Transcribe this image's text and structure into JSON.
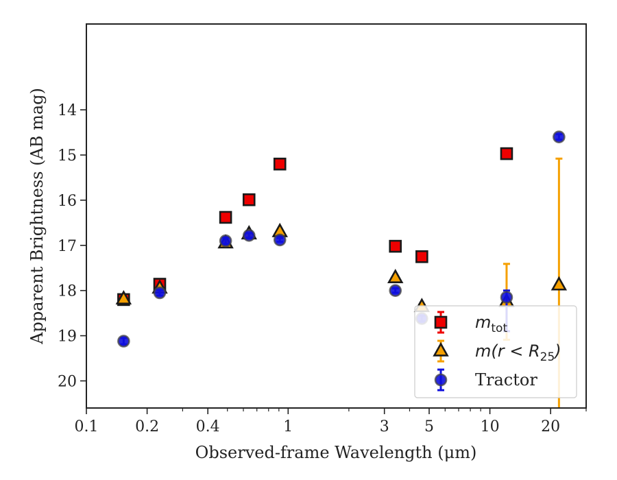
{
  "chart_data": {
    "type": "scatter",
    "xlabel": "Observed-frame Wavelength (μm)",
    "ylabel": "Apparent Brightness (AB mag)",
    "xscale": "log",
    "xlim": [
      0.1,
      30
    ],
    "ylim": [
      20.6,
      12.1
    ],
    "y_inverted": true,
    "x_ticks": [
      {
        "value": 0.1,
        "label": "0.1"
      },
      {
        "value": 0.2,
        "label": "0.2"
      },
      {
        "value": 0.4,
        "label": "0.4"
      },
      {
        "value": 1,
        "label": "1"
      },
      {
        "value": 3,
        "label": "3"
      },
      {
        "value": 5,
        "label": "5"
      },
      {
        "value": 10,
        "label": "10"
      },
      {
        "value": 20,
        "label": "20"
      }
    ],
    "y_ticks": [
      14,
      15,
      16,
      17,
      18,
      19,
      20
    ],
    "grid": false,
    "legend_position": "bottom-right",
    "series": [
      {
        "name": "m_tot",
        "legend_main": "m",
        "legend_sub": "tot",
        "marker": "square",
        "color": "#ee0000",
        "edge": "#1a1a1a",
        "points": [
          {
            "x": 0.153,
            "y": 18.2,
            "yerr": 0.04
          },
          {
            "x": 0.231,
            "y": 17.86,
            "yerr": 0.03
          },
          {
            "x": 0.49,
            "y": 16.38,
            "yerr": 0.02
          },
          {
            "x": 0.64,
            "y": 15.99,
            "yerr": 0.02
          },
          {
            "x": 0.91,
            "y": 15.2,
            "yerr": 0.02
          },
          {
            "x": 3.4,
            "y": 17.02,
            "yerr": 0.02
          },
          {
            "x": 4.6,
            "y": 17.25,
            "yerr": 0.02
          },
          {
            "x": 12.1,
            "y": 14.97,
            "yerr": 0.03
          }
        ]
      },
      {
        "name": "m(r<R25)",
        "legend_main": "m(r < R",
        "legend_sub": "25",
        "legend_close": ")",
        "marker": "triangle",
        "color": "#f5a000",
        "edge": "#1a1a1a",
        "points": [
          {
            "x": 0.153,
            "y": 18.19,
            "yerr": 0.05
          },
          {
            "x": 0.231,
            "y": 17.95,
            "yerr": 0.04
          },
          {
            "x": 0.49,
            "y": 16.95,
            "yerr": 0.03
          },
          {
            "x": 0.64,
            "y": 16.75,
            "yerr": 0.03
          },
          {
            "x": 0.91,
            "y": 16.7,
            "yerr": 0.03
          },
          {
            "x": 3.4,
            "y": 17.72,
            "yerr": 0.03
          },
          {
            "x": 4.6,
            "y": 18.36,
            "yerr": 0.05
          },
          {
            "x": 12.1,
            "y": 18.25,
            "yerr_lo": 0.84,
            "yerr_hi": 0.84
          },
          {
            "x": 22.0,
            "y": 17.88,
            "yerr_lo": 2.8,
            "yerr_hi": 3.5
          }
        ]
      },
      {
        "name": "Tractor",
        "legend_main": "Tractor",
        "marker": "circle",
        "color": "#1010dd",
        "edge": "#444444",
        "points": [
          {
            "x": 0.153,
            "y": 19.12,
            "yerr": 0.07
          },
          {
            "x": 0.231,
            "y": 18.05,
            "yerr": 0.06
          },
          {
            "x": 0.49,
            "y": 16.9,
            "yerr": 0.07
          },
          {
            "x": 0.64,
            "y": 16.78,
            "yerr": 0.05
          },
          {
            "x": 0.91,
            "y": 16.88,
            "yerr": 0.04
          },
          {
            "x": 3.4,
            "y": 18.0,
            "yerr": 0.05
          },
          {
            "x": 4.6,
            "y": 18.62,
            "yerr": 0.06
          },
          {
            "x": 12.1,
            "y": 18.15,
            "yerr_lo": 0.15,
            "yerr_hi": 0.75
          },
          {
            "x": 22.0,
            "y": 14.6,
            "yerr": 0.06
          }
        ]
      }
    ]
  }
}
